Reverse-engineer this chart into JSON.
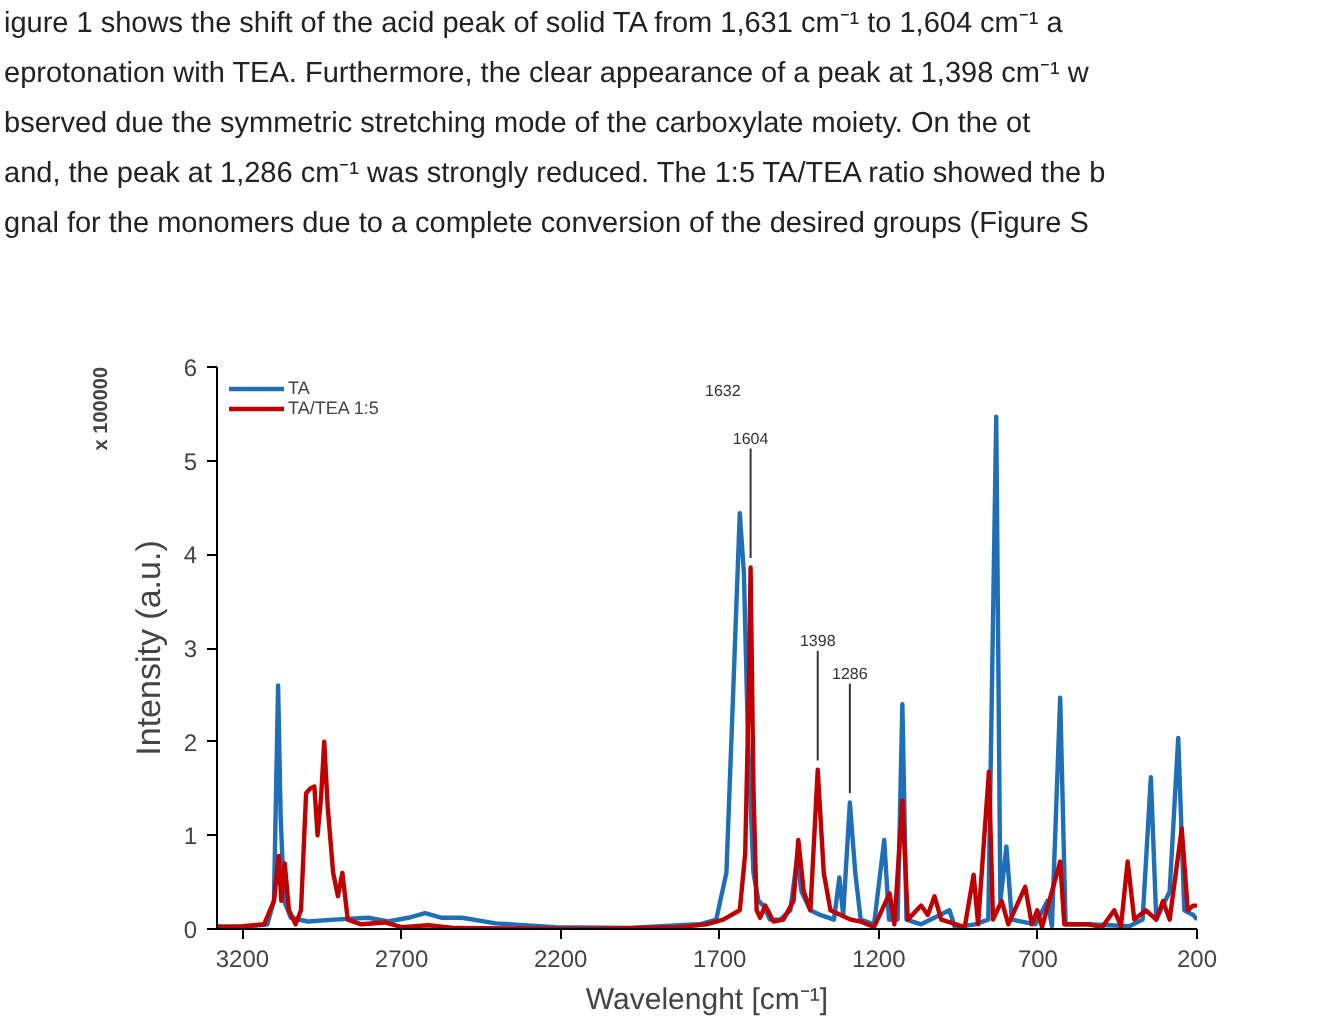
{
  "chart_data": {
    "type": "line",
    "xlabel": "Wavelenght [cm⁻¹]",
    "ylabel": "Intensity (a.u.)",
    "xlim": [
      3280,
      200
    ],
    "xticks": [
      3200,
      2700,
      2200,
      1700,
      1200,
      700,
      200
    ],
    "ylim": [
      0,
      6
    ],
    "yticks": [
      0,
      1,
      2,
      3,
      4,
      5,
      6
    ],
    "grid": false,
    "legend": "top left",
    "marker": "none",
    "line_style": "solid",
    "series": [
      {
        "name": "TA",
        "color": "#1f6fb8",
        "x": [
          3280,
          3200,
          3122,
          3101,
          3088,
          3080,
          3069,
          3048,
          2995,
          2911,
          2805,
          2742,
          2679,
          2626,
          2573,
          2510,
          2404,
          2215,
          1983,
          1827,
          1763,
          1711,
          1679,
          1658,
          1637,
          1624,
          1611,
          1594,
          1578,
          1563,
          1542,
          1510,
          1478,
          1457,
          1443,
          1415,
          1384,
          1341,
          1324,
          1312,
          1291,
          1274,
          1257,
          1215,
          1183,
          1168,
          1141,
          1126,
          1113,
          1067,
          978,
          961,
          898,
          856,
          831,
          818,
          799,
          782,
          708,
          670,
          656,
          630,
          613,
          540,
          413,
          371,
          345,
          328,
          286,
          259,
          240,
          212,
          200
        ],
        "values": [
          0.03,
          0.02,
          0.05,
          0.3,
          2.6,
          1.2,
          0.3,
          0.12,
          0.08,
          0.1,
          0.12,
          0.08,
          0.12,
          0.17,
          0.12,
          0.12,
          0.06,
          0.02,
          0.01,
          0.04,
          0.05,
          0.1,
          0.6,
          2.5,
          4.44,
          3.8,
          2.0,
          0.6,
          0.3,
          0.25,
          0.1,
          0.1,
          0.2,
          0.75,
          0.4,
          0.2,
          0.15,
          0.1,
          0.55,
          0.15,
          1.35,
          0.6,
          0.1,
          0.05,
          0.95,
          0.1,
          0.1,
          2.4,
          0.1,
          0.05,
          0.2,
          0.02,
          0.05,
          0.1,
          5.47,
          0.3,
          0.88,
          0.1,
          0.05,
          0.3,
          0.03,
          2.47,
          0.05,
          0.05,
          0.03,
          0.1,
          1.62,
          0.1,
          0.4,
          2.04,
          0.2,
          0.15,
          0.1
        ]
      },
      {
        "name": "TA/TEA 1:5",
        "color": "#c00000",
        "x": [
          3280,
          3200,
          3132,
          3101,
          3086,
          3078,
          3067,
          3054,
          3033,
          3016,
          3000,
          2987,
          2974,
          2964,
          2953,
          2943,
          2932,
          2915,
          2900,
          2886,
          2869,
          2827,
          2753,
          2700,
          2616,
          2531,
          2109,
          1827,
          1742,
          1689,
          1637,
          1620,
          1609,
          1603,
          1594,
          1584,
          1573,
          1557,
          1531,
          1500,
          1468,
          1453,
          1436,
          1415,
          1392,
          1373,
          1352,
          1320,
          1288,
          1257,
          1215,
          1166,
          1151,
          1126,
          1109,
          1067,
          1046,
          1025,
          1004,
          930,
          902,
          888,
          854,
          841,
          814,
          793,
          740,
          719,
          702,
          687,
          630,
          617,
          540,
          498,
          460,
          439,
          418,
          397,
          361,
          328,
          307,
          286,
          248,
          229,
          212,
          200
        ],
        "values": [
          0.02,
          0.03,
          0.05,
          0.3,
          0.78,
          0.3,
          0.7,
          0.2,
          0.05,
          0.2,
          1.45,
          1.5,
          1.52,
          1.0,
          1.4,
          2.0,
          1.3,
          0.6,
          0.35,
          0.6,
          0.1,
          0.05,
          0.07,
          0.02,
          0.04,
          0.01,
          0.0,
          0.02,
          0.05,
          0.1,
          0.2,
          0.8,
          2.5,
          3.86,
          1.5,
          0.2,
          0.12,
          0.25,
          0.08,
          0.1,
          0.3,
          0.95,
          0.4,
          0.2,
          1.7,
          0.6,
          0.2,
          0.15,
          0.1,
          0.08,
          0.02,
          0.38,
          0.05,
          1.37,
          0.1,
          0.25,
          0.15,
          0.35,
          0.1,
          0.02,
          0.58,
          0.05,
          1.68,
          0.1,
          0.3,
          0.05,
          0.45,
          0.05,
          0.2,
          0.02,
          0.72,
          0.05,
          0.05,
          0.02,
          0.2,
          0.03,
          0.72,
          0.1,
          0.2,
          0.1,
          0.3,
          0.1,
          1.07,
          0.2,
          0.25,
          0.25
        ]
      }
    ],
    "annotations": [
      "igure 1 shows the shift of the acid peak of solid TA from 1,631 cm⁻¹ to 1,604 cm⁻¹ a",
      "eprotonation with TEA. Furthermore, the clear appearance of a peak at 1,398 cm⁻¹ w",
      "bserved due the symmetric stretching mode of the carboxylate moiety. On the ot",
      "and, the peak at 1,286 cm⁻¹ was strongly reduced. The 1:5 TA/TEA ratio showed the b",
      "gnal for the monomers due to a complete conversion of the desired groups (Figure S",
      "1632",
      "x 100000",
      {
        "text": "1604",
        "x": 1603,
        "y": 3.86
      },
      {
        "text": "1398",
        "x": 1392,
        "y": 1.7
      },
      {
        "text": "1286",
        "x": 1291,
        "y": 1.35
      }
    ]
  }
}
